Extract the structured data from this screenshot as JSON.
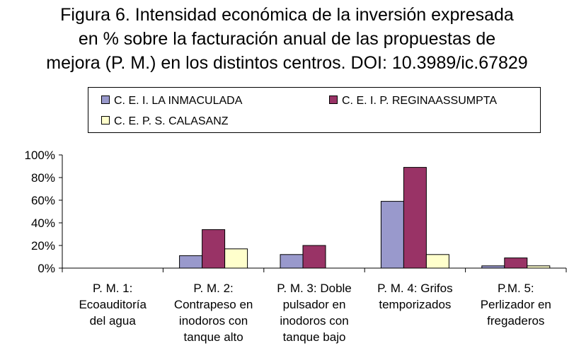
{
  "title_lines": [
    "Figura 6. Intensidad económica de la inversión expresada",
    "en % sobre la facturación anual de las propuestas de",
    "mejora (P. M.) en los distintos centros. DOI: 10.3989/ic.67829"
  ],
  "chart_data": {
    "type": "bar",
    "categories": [
      "P. M. 1:\nEcoauditoría\ndel agua",
      "P. M. 2:\nContrapeso en\ninodoros con\ntanque alto",
      "P. M. 3: Doble\npulsador en\ninodoros con\ntanque bajo",
      "P. M. 4: Grifos\ntemporizados",
      "P.M. 5:\nPerlizador en\nfregaderos"
    ],
    "series": [
      {
        "name": "C. E. I. LA INMACULADA",
        "color": "#9999cc",
        "values": [
          0,
          11,
          12,
          59,
          2
        ]
      },
      {
        "name": "C. E. I. P. REGINAASSUMPTA",
        "color": "#993366",
        "values": [
          0,
          34,
          20,
          89,
          9
        ]
      },
      {
        "name": "C. E. P. S. CALASANZ",
        "color": "#ffffcc",
        "values": [
          0,
          17,
          0,
          12,
          2
        ]
      }
    ],
    "yticks": [
      "0%",
      "20%",
      "40%",
      "60%",
      "80%",
      "100%"
    ],
    "ylim": [
      0,
      100
    ],
    "grid": false,
    "legend_position": "top"
  }
}
